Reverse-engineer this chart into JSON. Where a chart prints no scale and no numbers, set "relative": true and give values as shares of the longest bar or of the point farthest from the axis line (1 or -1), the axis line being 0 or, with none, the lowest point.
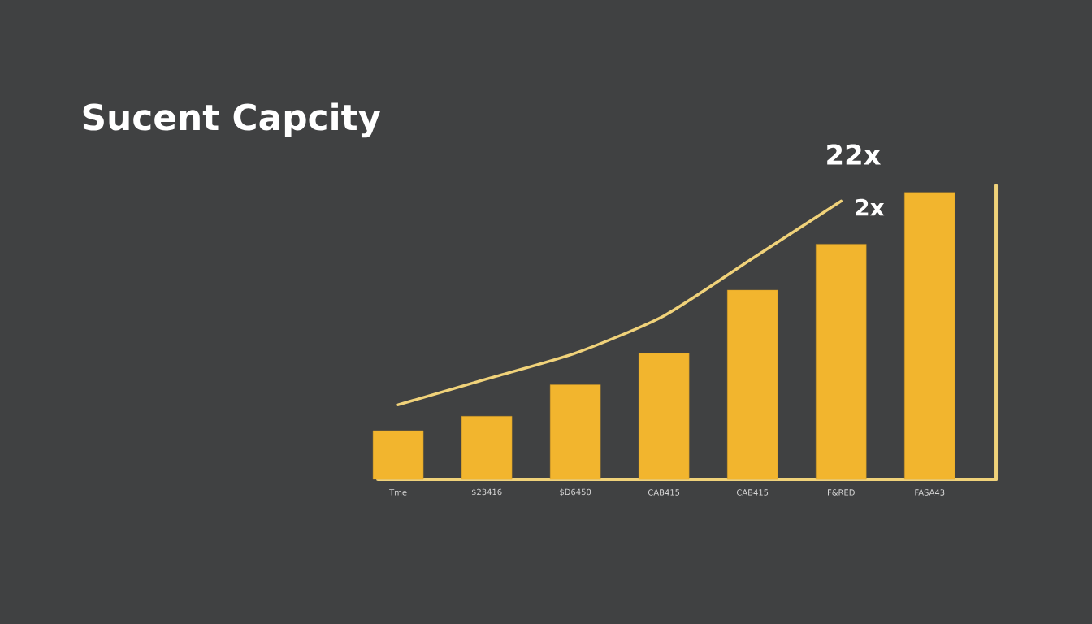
{
  "chart_data": {
    "type": "bar",
    "title": "Sucent Capcity",
    "relative": true,
    "categories": [
      "Tme",
      "$23416",
      "$D6450",
      "CAB415",
      "CAB415",
      "F&RED",
      "FASA43"
    ],
    "series": [
      {
        "color": "#f2b52e",
        "values": [
          0.17,
          0.22,
          0.33,
          0.44,
          0.66,
          0.82,
          1.0
        ]
      },
      {
        "type": "line",
        "color": "#f0d27a",
        "values": [
          0.26,
          0.35,
          0.44,
          0.57,
          0.77,
          0.97,
          null
        ]
      }
    ],
    "annotations": [
      "22x",
      "2x"
    ]
  }
}
